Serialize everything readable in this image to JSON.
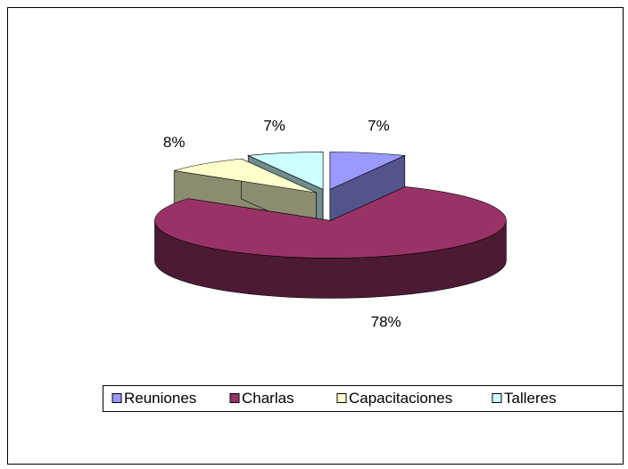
{
  "chart_data": {
    "type": "pie",
    "categories": [
      "Reuniones",
      "Charlas",
      "Capacitaciones",
      "Talleres"
    ],
    "values": [
      7,
      78,
      8,
      7
    ],
    "value_labels": [
      "7%",
      "78%",
      "8%",
      "7%"
    ],
    "colors": [
      "#9999ff",
      "#993366",
      "#ffffcc",
      "#ccffff"
    ],
    "legend": "bottom",
    "exploded": true
  }
}
